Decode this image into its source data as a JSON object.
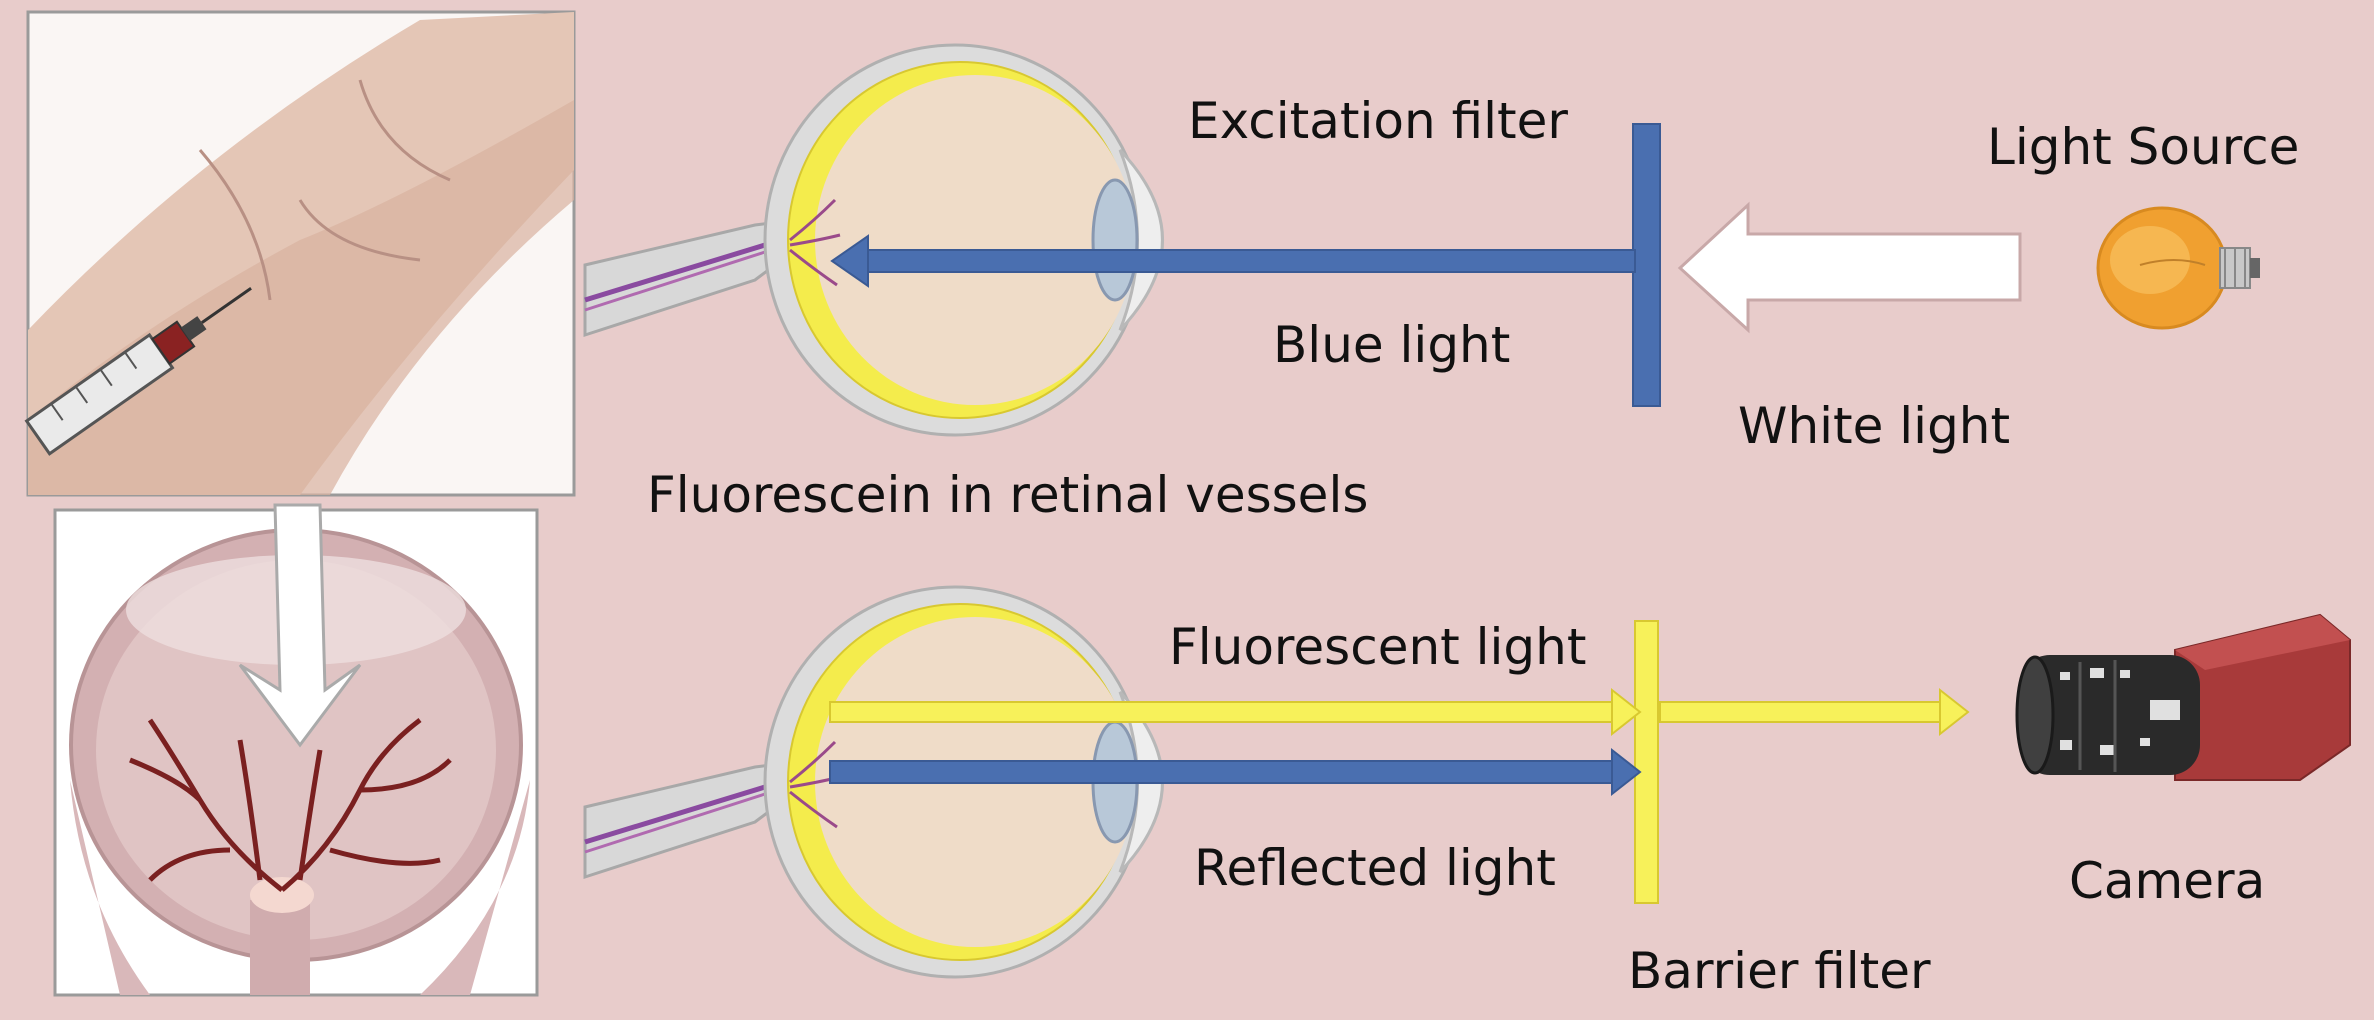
{
  "labels": {
    "excitation_filter": "Excitation filter",
    "light_source": "Light Source",
    "blue_light": "Blue light",
    "white_light": "White light",
    "fluorescein": "Fluorescein in retinal vessels",
    "fluorescent_light": "Fluorescent light",
    "reflected_light": "Reflected light",
    "camera": "Camera",
    "barrier_filter": "Barrier filter"
  },
  "colors": {
    "background": "#e8cccb",
    "blue_beam": "#4a6fb0",
    "yellow_beam": "#f7f15a",
    "white_arrow": "#ffffff",
    "retina": "#f4ec4c",
    "bulb": "#f0a030",
    "camera_body": "#a83a3a"
  },
  "icons": [
    "arm-injection-image",
    "retina-vessels-image",
    "light-bulb-icon",
    "camera-icon",
    "eye-cross-section-icon"
  ]
}
